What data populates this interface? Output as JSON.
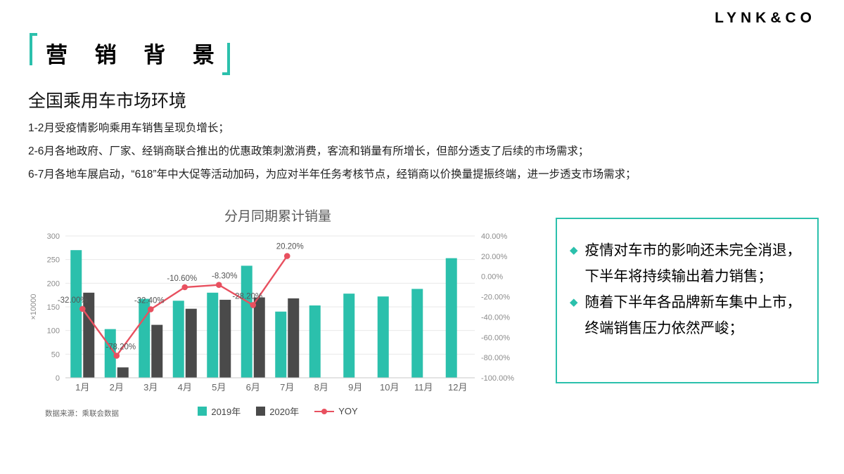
{
  "logo": {
    "text": "LYNK&CO"
  },
  "header": {
    "title": "营 销 背 景",
    "subtitle": "全国乘用车市场环境"
  },
  "paragraphs": [
    "1-2月受疫情影响乘用车销售呈现负增长；",
    "2-6月各地政府、厂家、经销商联合推出的优惠政策刺激消费，客流和销量有所增长，但部分透支了后续的市场需求；",
    "6-7月各地车展启动，“618”年中大促等活动加码，为应对半年任务考核节点，经销商以价换量提振终端，进一步透支市场需求；"
  ],
  "chart_data": {
    "type": "bar",
    "title": "分月同期累计销量",
    "source": "数据来源：乘联会数据",
    "categories": [
      "1月",
      "2月",
      "3月",
      "4月",
      "5月",
      "6月",
      "7月",
      "8月",
      "9月",
      "10月",
      "11月",
      "12月"
    ],
    "series": [
      {
        "name": "2019年",
        "type": "bar",
        "color": "#2BC0AC",
        "values": [
          270,
          103,
          167,
          163,
          180,
          237,
          140,
          153,
          178,
          172,
          188,
          253
        ]
      },
      {
        "name": "2020年",
        "type": "bar",
        "color": "#4A4A4A",
        "values": [
          180,
          22,
          112,
          146,
          165,
          170,
          168,
          null,
          null,
          null,
          null,
          null
        ]
      },
      {
        "name": "YOY",
        "type": "line",
        "color": "#E8505F",
        "axis": "right",
        "values": [
          -32.0,
          -78.2,
          -32.4,
          -10.6,
          -8.3,
          -28.2,
          20.2,
          null,
          null,
          null,
          null,
          null
        ]
      }
    ],
    "point_labels": [
      "-32.00%",
      "-78.20%",
      "-32.40%",
      "-10.60%",
      "-8.30%",
      "-28.20%",
      "20.20%"
    ],
    "left_axis": {
      "label": "×10000",
      "min": 0,
      "max": 300,
      "ticks": [
        0,
        50,
        100,
        150,
        200,
        250,
        300
      ]
    },
    "right_axis": {
      "min": -100,
      "max": 40,
      "ticks": [
        "40.00%",
        "20.00%",
        "0.00%",
        "-20.00%",
        "-40.00%",
        "-60.00%",
        "-80.00%",
        "-100.00%"
      ]
    },
    "legend_position": "bottom",
    "grid": true
  },
  "insights": {
    "items": [
      "疫情对车市的影响还未完全消退，下半年将持续输出着力销售；",
      "随着下半年各品牌新车集中上市，终端销售压力依然严峻；"
    ]
  },
  "colors": {
    "accent_teal": "#2BC0AC",
    "bar_2019": "#2BC0AC",
    "bar_2020": "#4A4A4A",
    "yoy_line": "#E8505F"
  }
}
